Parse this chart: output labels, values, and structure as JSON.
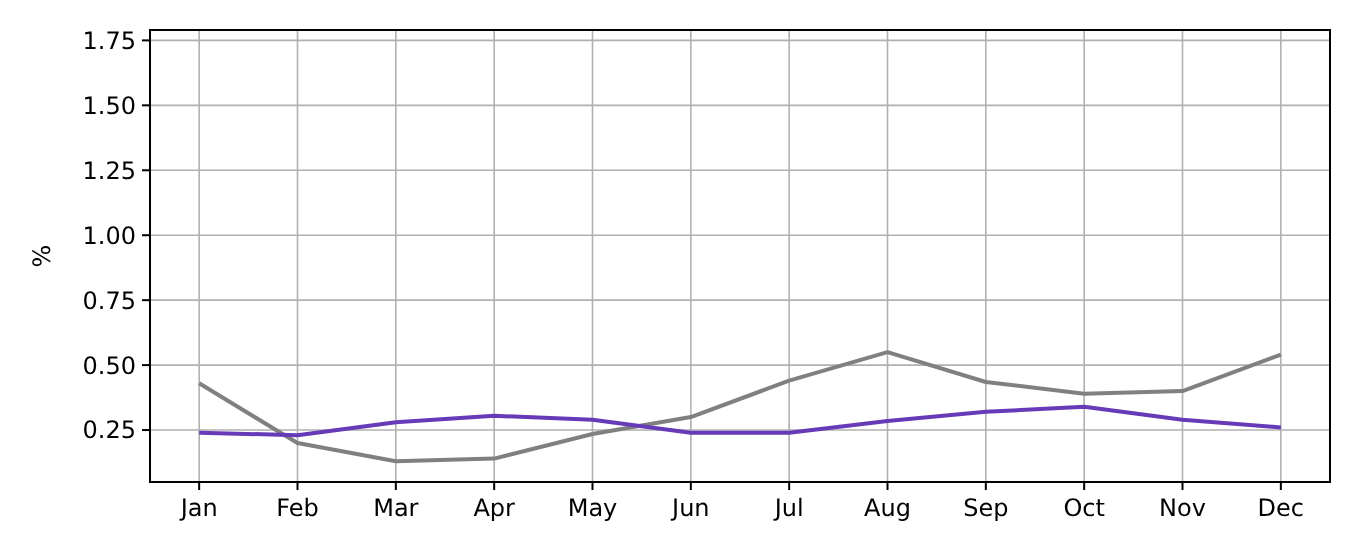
{
  "chart_data": {
    "type": "line",
    "ylabel": "%",
    "categories": [
      "Jan",
      "Feb",
      "Mar",
      "Apr",
      "May",
      "Jun",
      "Jul",
      "Aug",
      "Sep",
      "Oct",
      "Nov",
      "Dec"
    ],
    "series": [
      {
        "color": "#808080",
        "values": [
          0.43,
          0.2,
          0.13,
          0.14,
          0.235,
          0.3,
          0.44,
          0.55,
          0.435,
          0.39,
          0.4,
          0.54
        ]
      },
      {
        "color": "#673ab7",
        "values": [
          0.24,
          0.23,
          0.28,
          0.305,
          0.29,
          0.24,
          0.24,
          0.285,
          0.32,
          0.34,
          0.29,
          0.26
        ]
      }
    ],
    "ylim": [
      0.05,
      1.79
    ],
    "yticks": [
      0.25,
      {
        "value": 0.5,
        "label": "0.50"
      },
      0.75,
      {
        "value": 1,
        "label": "1.00"
      },
      1.25,
      {
        "value": 1.5,
        "label": "1.50"
      },
      1.75
    ],
    "grid": true
  }
}
